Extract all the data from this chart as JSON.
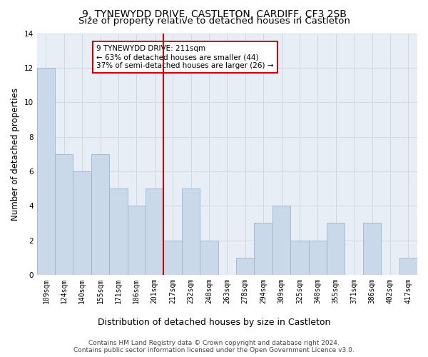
{
  "title": "9, TYNEWYDD DRIVE, CASTLETON, CARDIFF, CF3 2SB",
  "subtitle": "Size of property relative to detached houses in Castleton",
  "xlabel": "Distribution of detached houses by size in Castleton",
  "ylabel": "Number of detached properties",
  "footer_line1": "Contains HM Land Registry data © Crown copyright and database right 2024.",
  "footer_line2": "Contains public sector information licensed under the Open Government Licence v3.0.",
  "bar_labels": [
    "109sqm",
    "124sqm",
    "140sqm",
    "155sqm",
    "171sqm",
    "186sqm",
    "201sqm",
    "217sqm",
    "232sqm",
    "248sqm",
    "263sqm",
    "278sqm",
    "294sqm",
    "309sqm",
    "325sqm",
    "340sqm",
    "355sqm",
    "371sqm",
    "386sqm",
    "402sqm",
    "417sqm"
  ],
  "bar_values": [
    12,
    7,
    6,
    7,
    5,
    4,
    5,
    2,
    5,
    2,
    0,
    1,
    3,
    4,
    2,
    2,
    3,
    0,
    3,
    0,
    1
  ],
  "bar_color": "#c9d9ea",
  "bar_edge_color": "#9ab5cc",
  "vline_x": 6.5,
  "vline_color": "#cc0000",
  "annotation_text": "9 TYNEWYDD DRIVE: 211sqm\n← 63% of detached houses are smaller (44)\n37% of semi-detached houses are larger (26) →",
  "annotation_box_color": "#ffffff",
  "annotation_box_edge": "#cc0000",
  "ylim": [
    0,
    14
  ],
  "yticks": [
    0,
    2,
    4,
    6,
    8,
    10,
    12,
    14
  ],
  "grid_color": "#d0d8e4",
  "bg_color": "#e8eef5",
  "fig_bg_color": "#ffffff",
  "title_fontsize": 10,
  "subtitle_fontsize": 9.5,
  "tick_fontsize": 7,
  "ylabel_fontsize": 8.5,
  "xlabel_fontsize": 9,
  "footer_fontsize": 6.5
}
